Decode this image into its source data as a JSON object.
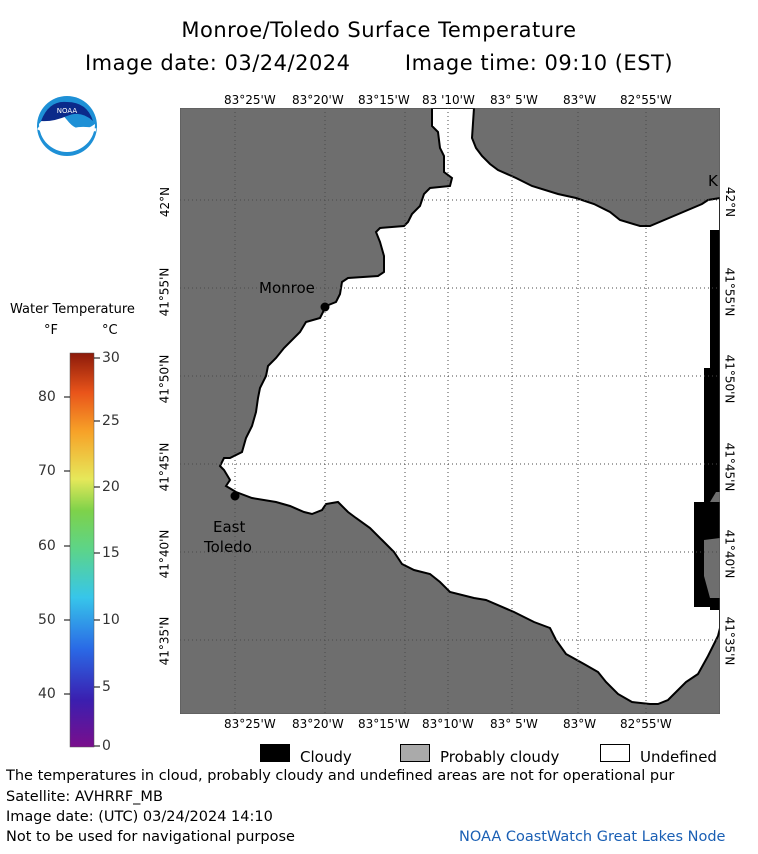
{
  "title": "Monroe/Toledo Surface Temperature",
  "image_date": "Image date: 03/24/2024",
  "image_time": "Image time: 09:10 (EST)",
  "logo_text": "NOAA",
  "scale": {
    "title": "Water Temperature",
    "unit_f": "°F",
    "unit_c": "°C",
    "f_labels": [
      "80",
      "70",
      "60",
      "50",
      "40"
    ],
    "c_labels": [
      "30",
      "25",
      "20",
      "15",
      "10",
      "5",
      "0"
    ]
  },
  "map": {
    "lon_labels": [
      "83°25'W",
      "83°20'W",
      "83°15'W",
      "83 '10'W",
      "83° 5'W",
      "83°W",
      "82°55'W"
    ],
    "lon_labels_bottom": [
      "83°25'W",
      "83°20'W",
      "83°15'W",
      "83°10'W",
      "83° 5'W",
      "83°W",
      "82°55'W"
    ],
    "lat_labels": [
      "42°N",
      "41°55'N",
      "41°50'N",
      "41°45'N",
      "41°40'N",
      "41°35'N"
    ],
    "places": {
      "monroe": "Monroe",
      "east_toledo_1": "East",
      "east_toledo_2": "Toledo",
      "k": "K"
    },
    "colors": {
      "land": "#6e6e6e",
      "water": "#ffffff",
      "cloud": "#000000"
    }
  },
  "legend": {
    "cloudy": "Cloudy",
    "probably_cloudy": "Probably cloudy",
    "undefined": "Undefined"
  },
  "notes": {
    "line1": "The temperatures in cloud, probably cloudy and undefined areas are not for operational pur",
    "line2": "Satellite: AVHRRF_MB",
    "line3": "Image date: (UTC) 03/24/2024  14:10",
    "line4": "Not to be used for navigational purpose"
  },
  "credit": "NOAA CoastWatch Great Lakes Node"
}
